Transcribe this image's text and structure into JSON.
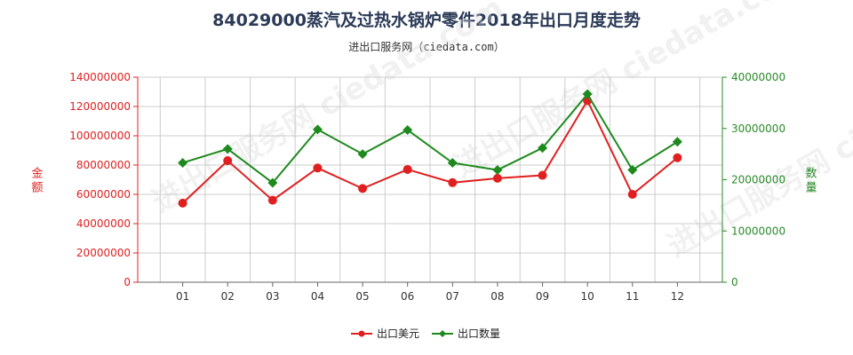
{
  "title": "84029000蒸汽及过热水锅炉零件2018年出口月度走势",
  "subtitle": "进出口服务网（ciedata.com）",
  "watermark": "进出口服务网 ciedata.com",
  "colors": {
    "series1": "#e02020",
    "series2": "#1e8a1e",
    "left_axis": "#e02020",
    "right_axis": "#2a8a2a",
    "grid": "#cccccc"
  },
  "chart_data": {
    "type": "line",
    "title": "84029000蒸汽及过热水锅炉零件2018年出口月度走势",
    "categories": [
      "01",
      "02",
      "03",
      "04",
      "05",
      "06",
      "07",
      "08",
      "09",
      "10",
      "11",
      "12"
    ],
    "ylabel_left": "金额",
    "ylabel_right": "数量",
    "ylim_left": [
      0,
      140000000
    ],
    "ylim_right": [
      0,
      40000000
    ],
    "yticks_left": [
      "0",
      "20000000",
      "40000000",
      "60000000",
      "80000000",
      "100000000",
      "120000000",
      "140000000"
    ],
    "yticks_right": [
      "0",
      "10000000",
      "20000000",
      "30000000",
      "40000000"
    ],
    "grid": true,
    "legend_position": "bottom",
    "series": [
      {
        "name": "出口美元",
        "axis": "left",
        "marker": "circle",
        "values": [
          54000000,
          83000000,
          56000000,
          78000000,
          64000000,
          77000000,
          68000000,
          71000000,
          73000000,
          124000000,
          60000000,
          85000000
        ]
      },
      {
        "name": "出口数量",
        "axis": "right",
        "marker": "diamond",
        "values": [
          23300000,
          26000000,
          19400000,
          29800000,
          25000000,
          29700000,
          23300000,
          21900000,
          26200000,
          36700000,
          21900000,
          27400000
        ]
      }
    ]
  }
}
